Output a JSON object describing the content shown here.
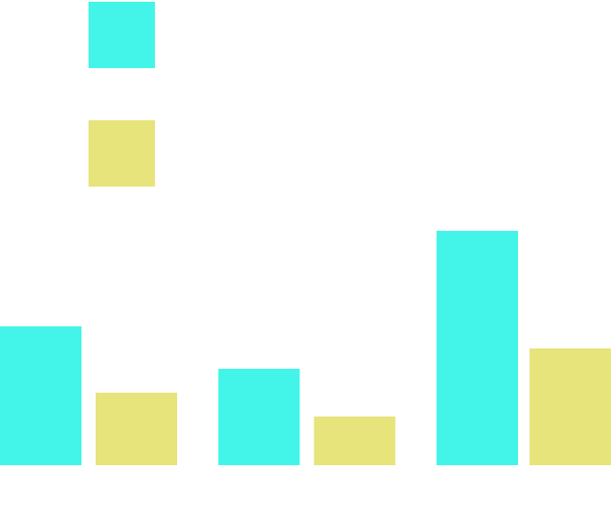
{
  "chart_data": {
    "type": "bar",
    "categories": [
      null,
      null,
      null
    ],
    "series": [
      {
        "color": "#43f5e8",
        "values": [
          157,
          109,
          265
        ]
      },
      {
        "color": "#e6e47a",
        "values": [
          82,
          55,
          132
        ]
      }
    ],
    "ylim": [
      0,
      526
    ],
    "legend": "top-left"
  }
}
